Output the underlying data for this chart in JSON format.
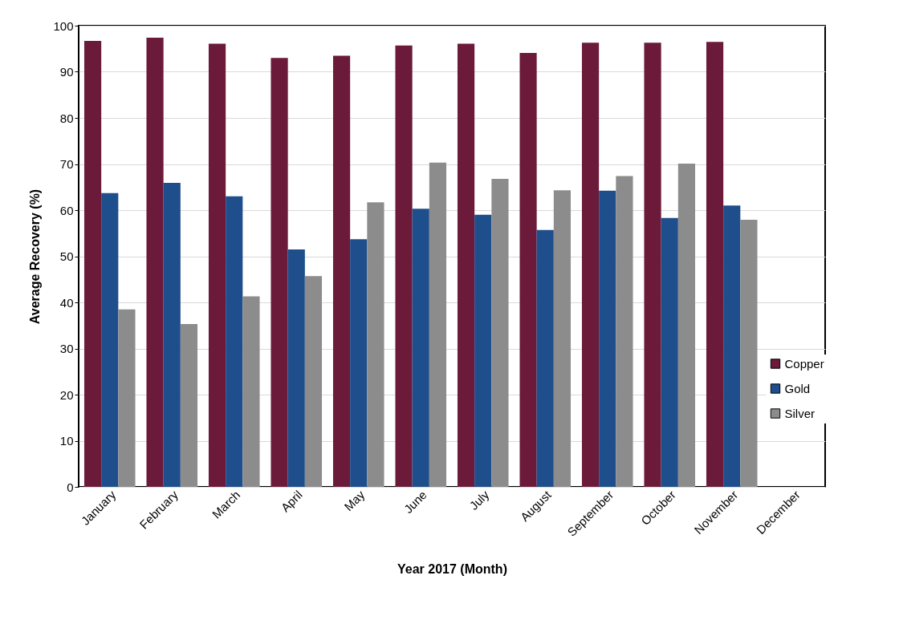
{
  "chart_data": {
    "type": "bar",
    "xlabel": "Year 2017 (Month)",
    "ylabel": "Average Recovery (%)",
    "categories": [
      "January",
      "February",
      "March",
      "April",
      "May",
      "June",
      "July",
      "August",
      "September",
      "October",
      "November",
      "December"
    ],
    "series": [
      {
        "name": "Copper",
        "color": "#6b1a3a",
        "values": [
          96.7,
          97.4,
          96.1,
          93.0,
          93.5,
          95.7,
          96.1,
          94.1,
          96.3,
          96.3,
          96.5,
          null
        ]
      },
      {
        "name": "Gold",
        "color": "#1f4e8c",
        "values": [
          63.7,
          65.9,
          63.0,
          51.5,
          53.7,
          60.3,
          59.0,
          55.7,
          64.2,
          58.3,
          61.0,
          null
        ]
      },
      {
        "name": "Silver",
        "color": "#8c8c8c",
        "values": [
          38.5,
          35.3,
          41.3,
          45.7,
          61.7,
          70.3,
          66.8,
          64.3,
          67.4,
          70.1,
          57.9,
          null
        ]
      }
    ],
    "ylim": [
      0,
      100
    ],
    "yticks": [
      0,
      10,
      20,
      30,
      40,
      50,
      60,
      70,
      80,
      90,
      100
    ],
    "grid": "y",
    "legend": "bottom right"
  }
}
